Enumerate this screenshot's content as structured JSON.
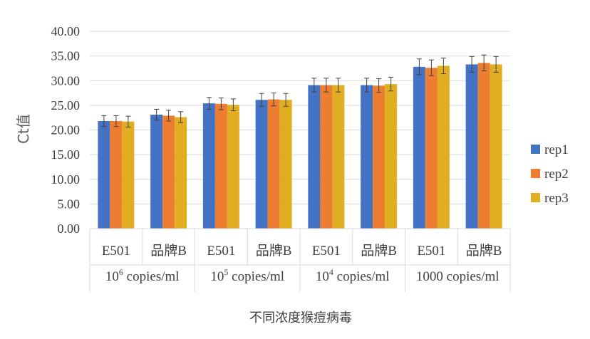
{
  "chart_data": {
    "type": "bar",
    "ylabel": "Ct值",
    "xlabel": "不同浓度猴痘病毒",
    "ylim": [
      0,
      40
    ],
    "yticks": [
      "0.00",
      "5.00",
      "10.00",
      "15.00",
      "20.00",
      "25.00",
      "30.00",
      "35.00",
      "40.00"
    ],
    "grid": true,
    "legend_position": "right",
    "groups": [
      {
        "label_base": "10",
        "label_sup": "6",
        "label_rest": " copies/ml"
      },
      {
        "label_base": "10",
        "label_sup": "5",
        "label_rest": " copies/ml"
      },
      {
        "label_base": "10",
        "label_sup": "4",
        "label_rest": " copies/ml"
      },
      {
        "label_base": "1000 copies/ml",
        "label_sup": "",
        "label_rest": ""
      }
    ],
    "categories": [
      "E501",
      "品牌B",
      "E501",
      "品牌B",
      "E501",
      "品牌B",
      "E501",
      "品牌B"
    ],
    "series": [
      {
        "name": "rep1",
        "color": "#4472C4",
        "values": [
          21.8,
          23.1,
          25.4,
          26.1,
          29.1,
          29.1,
          32.8,
          33.3
        ],
        "errors": [
          1.1,
          1.1,
          1.2,
          1.3,
          1.4,
          1.4,
          1.6,
          1.6
        ]
      },
      {
        "name": "rep2",
        "color": "#ED7D31",
        "values": [
          21.8,
          22.9,
          25.3,
          26.2,
          29.1,
          29.0,
          32.6,
          33.6
        ],
        "errors": [
          1.1,
          1.1,
          1.2,
          1.3,
          1.4,
          1.4,
          1.6,
          1.6
        ]
      },
      {
        "name": "rep3",
        "color": "#E1AE22",
        "values": [
          21.7,
          22.6,
          25.1,
          26.1,
          29.1,
          29.3,
          33.0,
          33.3
        ],
        "errors": [
          1.1,
          1.1,
          1.2,
          1.3,
          1.4,
          1.4,
          1.6,
          1.6
        ]
      }
    ]
  }
}
